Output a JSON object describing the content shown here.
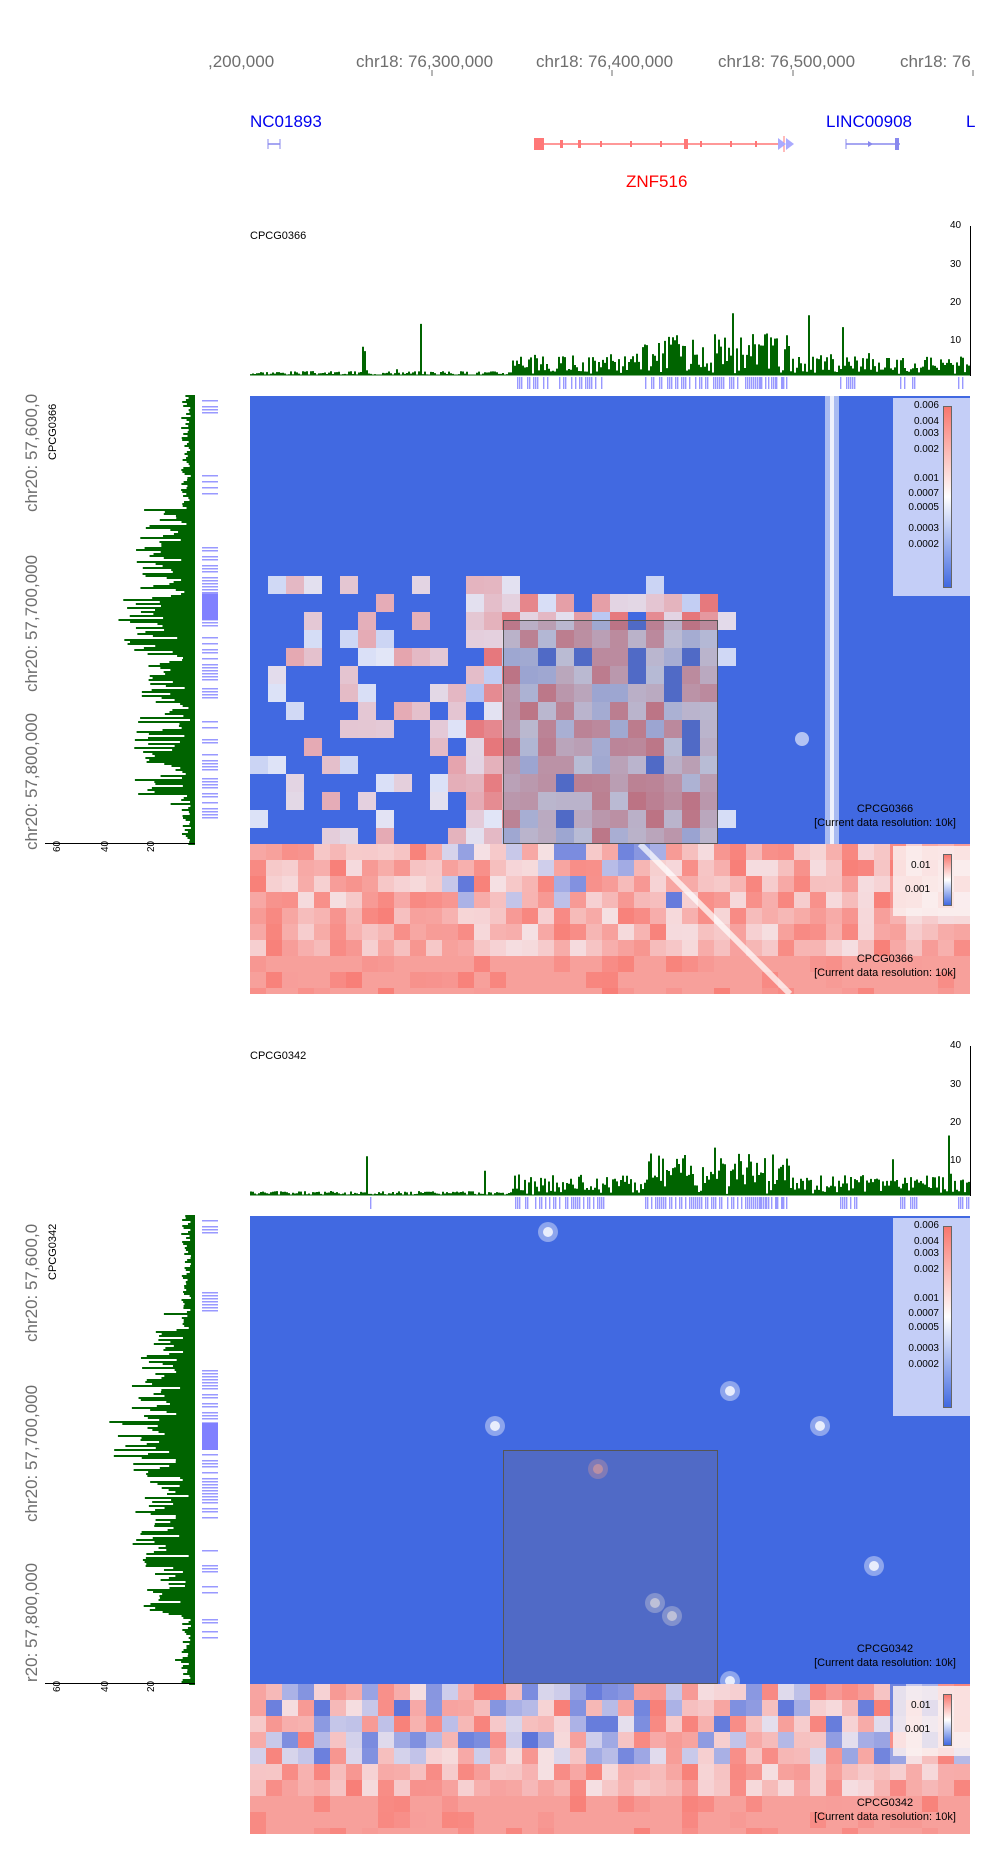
{
  "top_axis": {
    "ticks": [
      ",200,000",
      "chr18: 76,300,000",
      "chr18: 76,400,000",
      "chr18: 76,500,000",
      "chr18: 76"
    ]
  },
  "genes": {
    "left": "NC01893",
    "main": "ZNF516",
    "right": "LINC00908",
    "right_edge": "L",
    "main_color": "#ff0000",
    "other_color": "#0000ee"
  },
  "panels": [
    {
      "sample": "CPCG0366",
      "resolution": "[Current data resolution: 10k]",
      "track_ticks": [
        "40",
        "30",
        "20",
        "10"
      ],
      "left_ticks": [
        "60",
        "40",
        "20"
      ],
      "left_coords": [
        "chr20: 57,600,0",
        "chr20: 57,700,000",
        "chr20: 57,800,000"
      ],
      "legend_main": [
        "0.006",
        "0.004",
        "0.003",
        "0.002",
        "0.001",
        "0.0007",
        "0.0005",
        "0.0003",
        "0.0002"
      ],
      "legend_lower": [
        "0.01",
        "0.001"
      ]
    },
    {
      "sample": "CPCG0342",
      "resolution": "[Current data resolution: 10k]",
      "track_ticks": [
        "40",
        "30",
        "20",
        "10"
      ],
      "left_ticks": [
        "60",
        "40",
        "20"
      ],
      "left_coords": [
        "chr20: 57,600,0",
        "chr20: 57,700,000",
        "r20: 57,800,000"
      ],
      "legend_main": [
        "0.006",
        "0.004",
        "0.003",
        "0.002",
        "0.001",
        "0.0007",
        "0.0005",
        "0.0003",
        "0.0002"
      ],
      "legend_lower": [
        "0.01",
        "0.001"
      ]
    }
  ],
  "colors": {
    "heatmap_low": "#4169e1",
    "heatmap_high": "#f8766d",
    "track": "#006400",
    "peak": "#9999ff",
    "coord_text": "#6e6e6e"
  }
}
